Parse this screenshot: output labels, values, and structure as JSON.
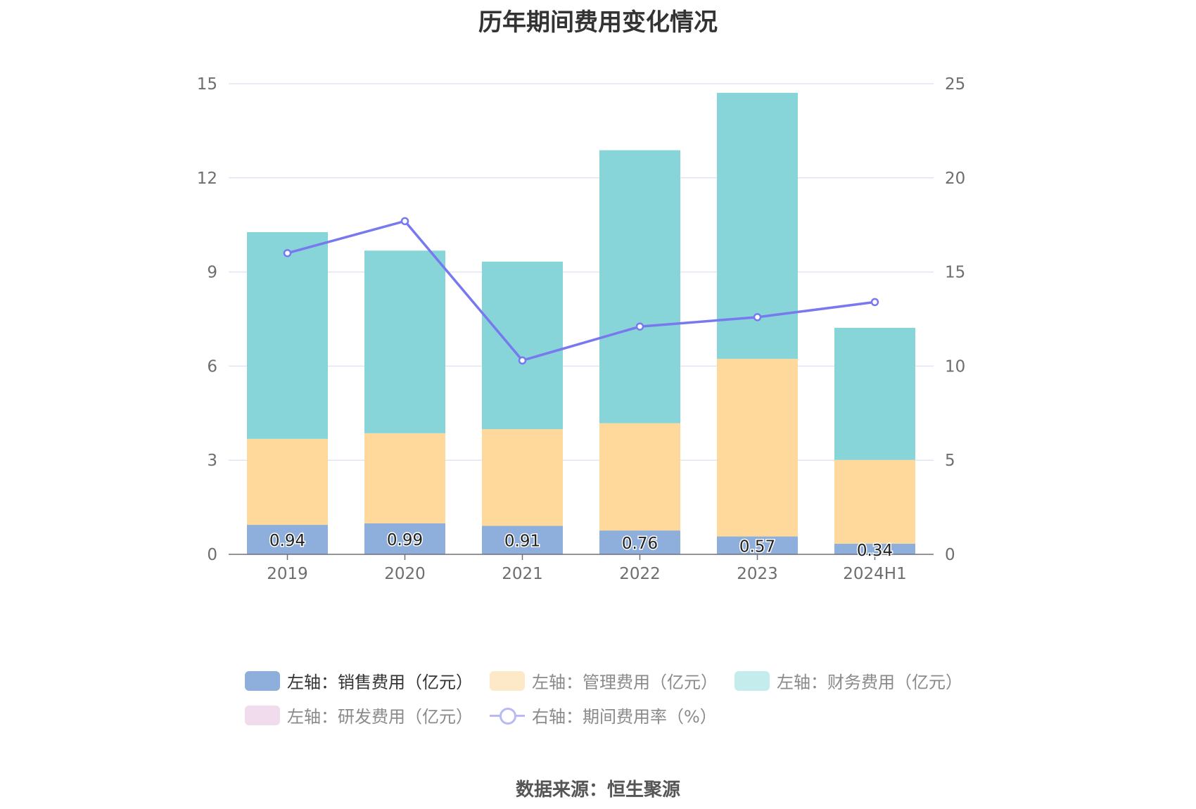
{
  "title": "历年期间费用变化情况",
  "source": "数据来源：恒生聚源",
  "chart_data": {
    "type": "bar",
    "stacked": true,
    "categories": [
      "2019",
      "2020",
      "2021",
      "2022",
      "2023",
      "2024H1"
    ],
    "left_axis": {
      "ticks": [
        "0",
        "3",
        "6",
        "9",
        "12",
        "15"
      ],
      "ylim": [
        0,
        15
      ]
    },
    "right_axis": {
      "ticks": [
        "0",
        "5",
        "10",
        "15",
        "20",
        "25"
      ],
      "ylim": [
        0,
        25
      ]
    },
    "series": [
      {
        "name": "左轴：销售费用（亿元）",
        "axis": "left",
        "color": "#8eaedb",
        "values": [
          0.94,
          0.99,
          0.91,
          0.76,
          0.57,
          0.34
        ],
        "labels": [
          "0.94",
          "0.99",
          "0.91",
          "0.76",
          "0.57",
          "0.34"
        ]
      },
      {
        "name": "左轴：管理费用（亿元）",
        "axis": "left",
        "color": "#fed99b",
        "values": [
          2.74,
          2.87,
          3.08,
          3.42,
          5.66,
          2.67
        ]
      },
      {
        "name": "左轴：财务费用（亿元）",
        "axis": "left",
        "color": "#87d5d8",
        "values": [
          6.59,
          5.82,
          5.34,
          8.7,
          8.48,
          4.21
        ]
      },
      {
        "name": "左轴：研发费用（亿元）",
        "axis": "left",
        "color": "#f0dced",
        "values": [
          0,
          0,
          0,
          0,
          0,
          0
        ]
      },
      {
        "name": "右轴：期间费用率（%）",
        "axis": "right",
        "type": "line",
        "color": "#7879ef",
        "values": [
          16.0,
          17.7,
          10.3,
          12.1,
          12.6,
          13.4
        ]
      }
    ]
  }
}
